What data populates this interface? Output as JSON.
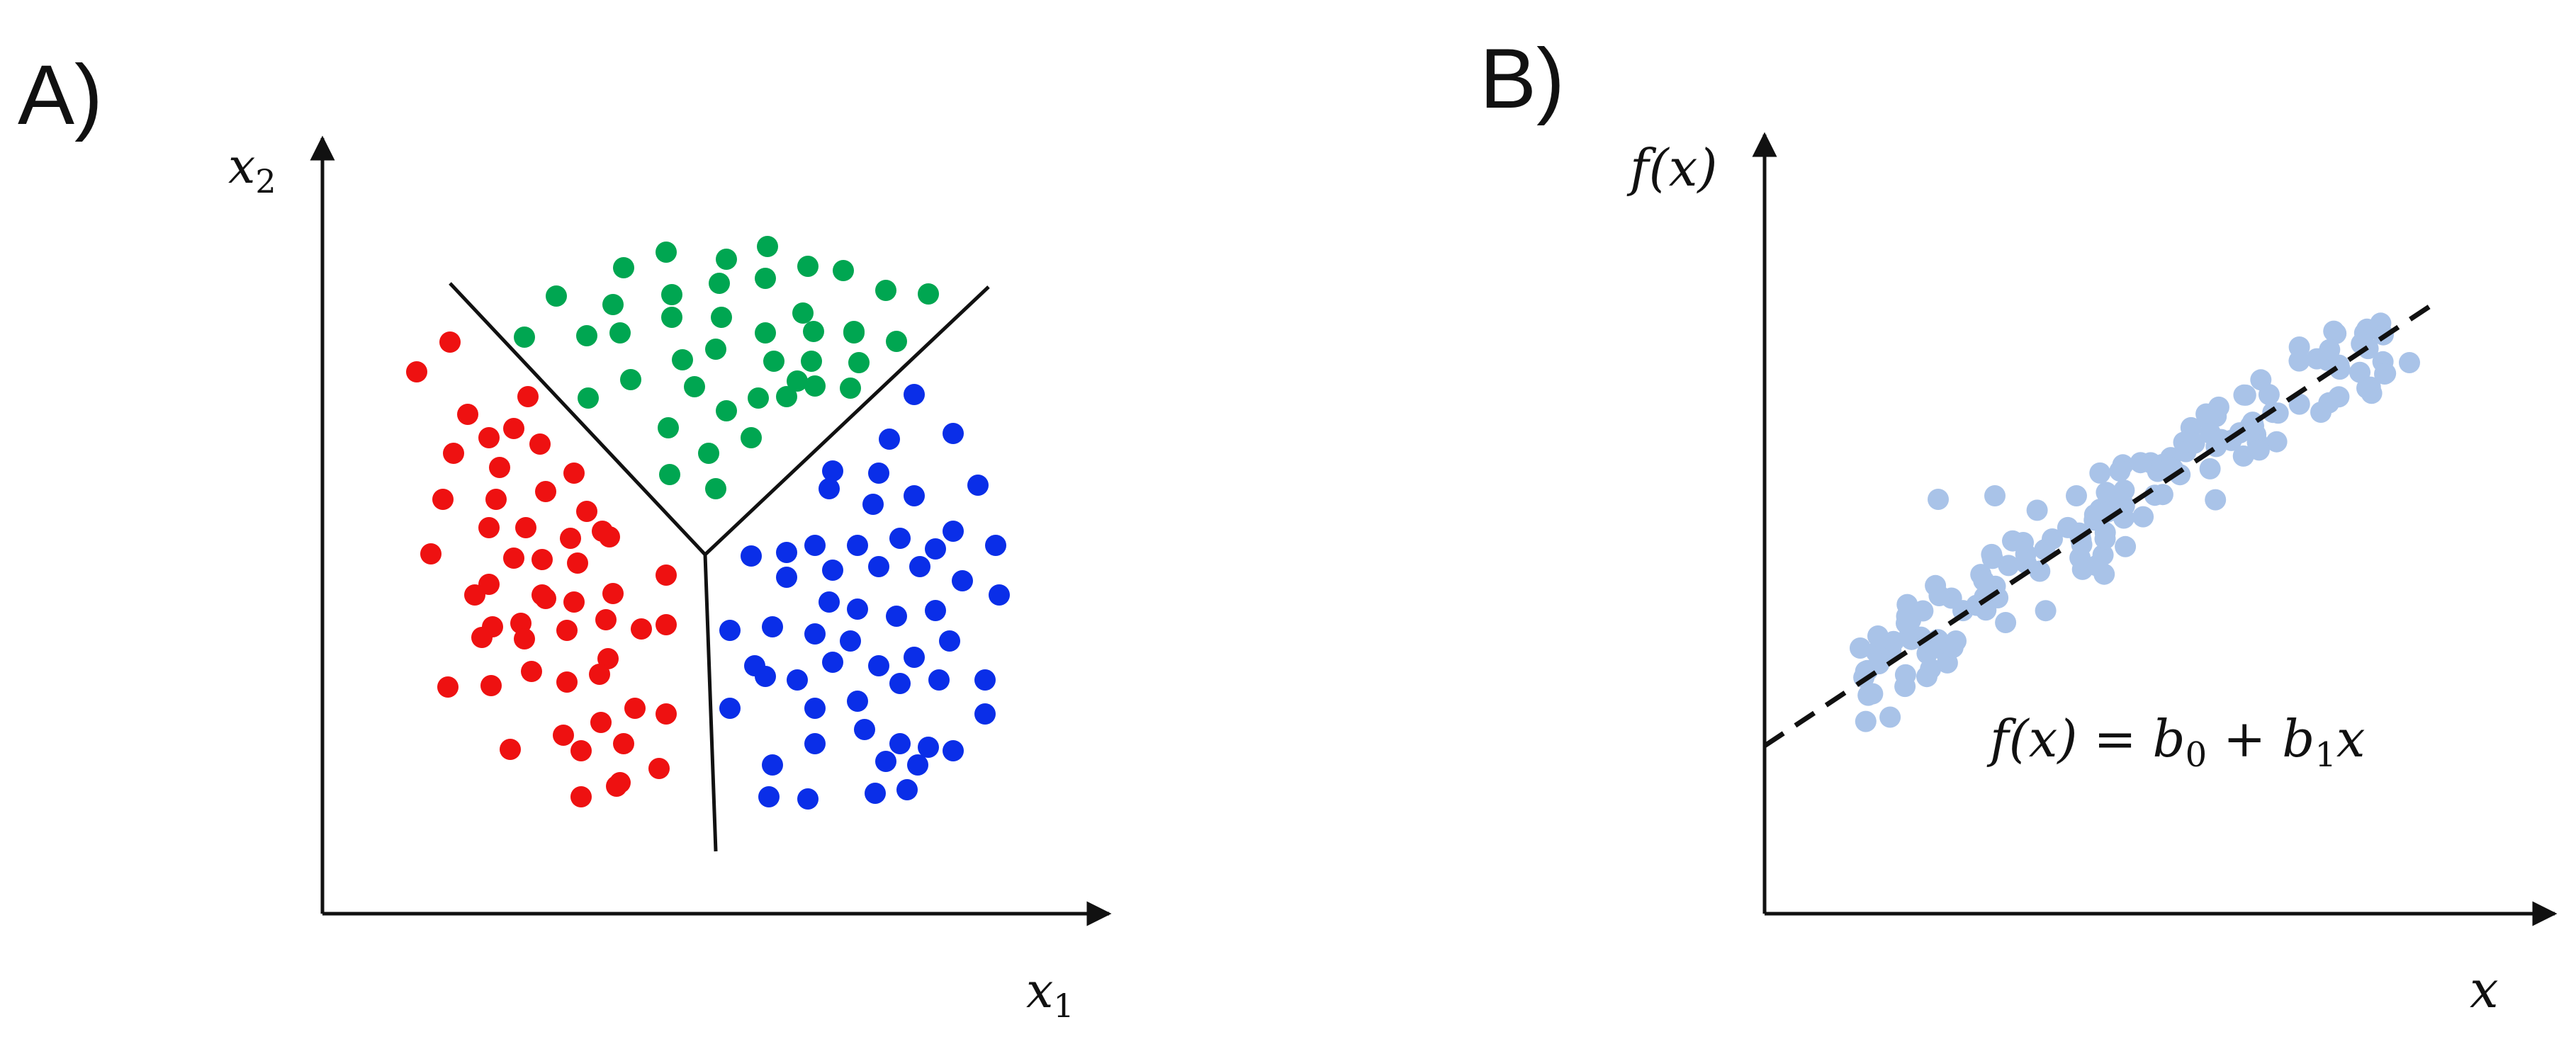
{
  "panel_a": {
    "label": "A)",
    "x_axis_label": "x",
    "x_axis_subscript": "1",
    "y_axis_label": "x",
    "y_axis_subscript": "2",
    "colors": {
      "red": "#ee1111",
      "green": "#00a651",
      "blue": "#0a2ee8"
    }
  },
  "panel_b": {
    "label": "B)",
    "x_axis_label": "x",
    "y_axis_label": "f(x)",
    "equation": {
      "lhs": "f(x) = b",
      "sub0": "0",
      "plus": " + b",
      "sub1": "1",
      "tail": "x"
    },
    "point_color": "#a9c3e8"
  }
}
